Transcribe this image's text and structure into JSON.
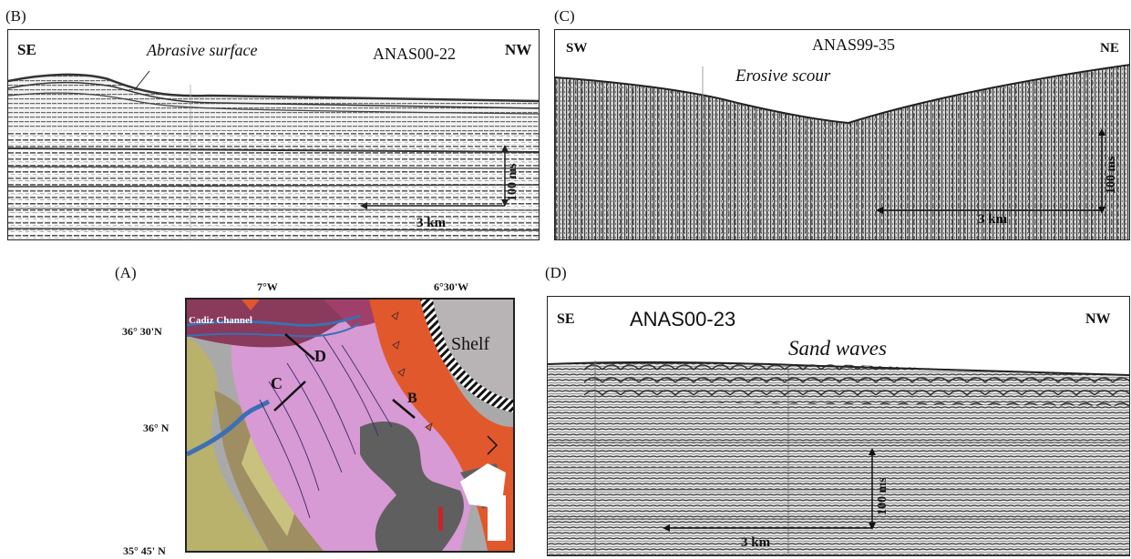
{
  "panels": {
    "b": {
      "label": "(B)",
      "dir_left": "SE",
      "dir_right": "NW",
      "title": "ANAS00-22",
      "annotation": "Abrasive surface",
      "scale_h": "3 km",
      "scale_v": "100 ms"
    },
    "c": {
      "label": "(C)",
      "dir_left": "SW",
      "dir_right": "NE",
      "title": "ANAS99-35",
      "annotation": "Erosive scour",
      "scale_h": "3 km",
      "scale_v": "100 ms"
    },
    "a": {
      "label": "(A)",
      "lon1": "7°W",
      "lon2": "6°30'W",
      "lat1": "36° 30'N",
      "lat2": "36° N",
      "lat3": "35° 45' N",
      "channel": "Cadiz Channel",
      "shelf": "Shelf",
      "mark_b": "B",
      "mark_c": "C",
      "mark_d": "D"
    },
    "d": {
      "label": "(D)",
      "dir_left": "SE",
      "dir_right": "NW",
      "title": "ANAS00-23",
      "annotation": "Sand waves",
      "scale_h": "3 km",
      "scale_v": "100 ms"
    }
  },
  "colors": {
    "map_pink": "#d79ad4",
    "map_dark_purple": "#8a3a5a",
    "map_orange": "#e0582c",
    "map_gray_shelf": "#b8b4b6",
    "map_dark_gray": "#5f5f5f",
    "map_olive": "#b8b26c",
    "map_khaki": "#9e8e62",
    "map_light_gray": "#aaaaaa",
    "map_blue": "#3c6fb4",
    "map_red": "#c8242a"
  }
}
